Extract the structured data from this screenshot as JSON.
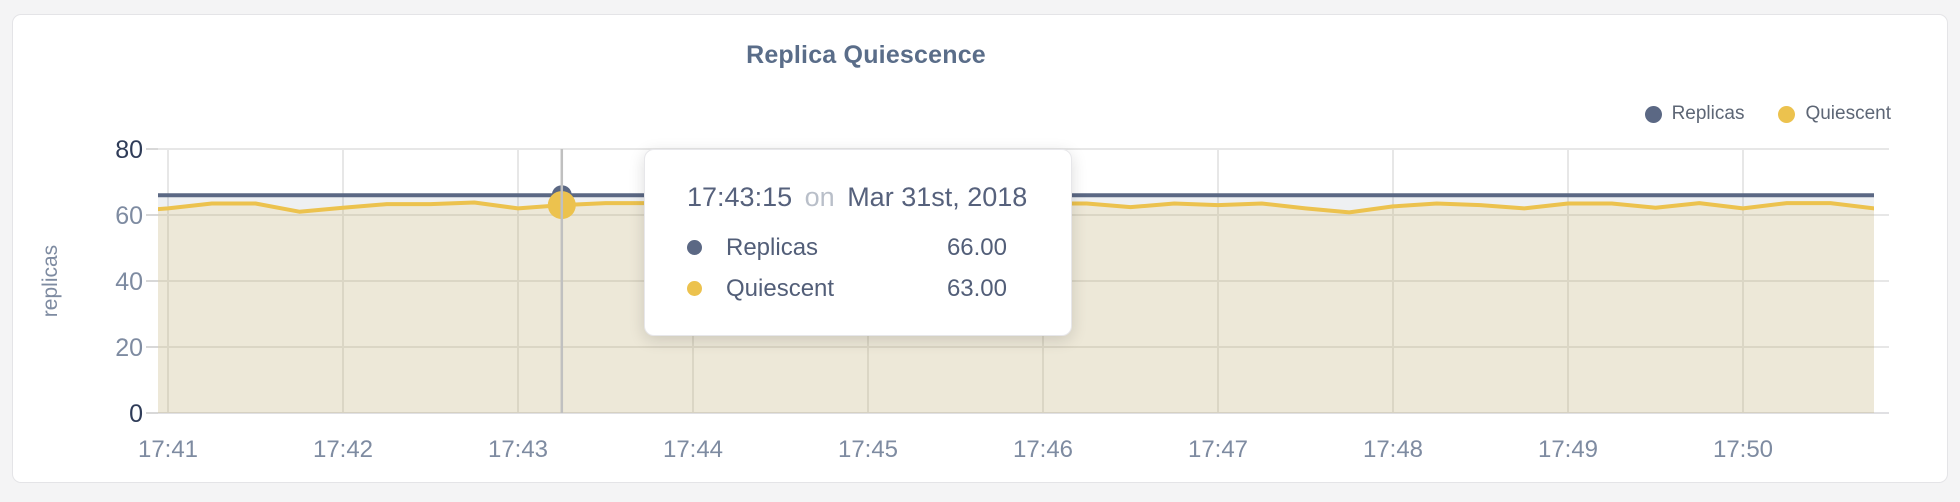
{
  "title": "Replica Quiescence",
  "legend": [
    {
      "label": "Replicas",
      "color": "#5b6884"
    },
    {
      "label": "Quiescent",
      "color": "#ecc24e"
    }
  ],
  "tooltip": {
    "time": "17:43:15",
    "preposition": "on",
    "date": "Mar 31st, 2018",
    "rows": [
      {
        "label": "Replicas",
        "value": "66.00",
        "color": "#5b6884"
      },
      {
        "label": "Quiescent",
        "value": "63.00",
        "color": "#ecc24e"
      }
    ]
  },
  "colors": {
    "page_background": "#f4f4f5",
    "card_background": "#ffffff",
    "card_border": "#e4e4e7",
    "grid_line": "#e7e7e7",
    "axis_line": "#e0e0e3",
    "tick_mark": "#d8d8d8",
    "crosshair": "#c0c0c0",
    "axis_label_light": "#7e8ba1",
    "axis_label_dark": "#2f3c58",
    "title_text": "#5a6d89"
  },
  "chart_data": {
    "type": "line",
    "title": "Replica Quiescence",
    "xlabel": "",
    "ylabel": "replicas",
    "ylim": [
      0,
      80
    ],
    "y_ticks": [
      0,
      20,
      40,
      60,
      80
    ],
    "x_tick_labels": [
      "17:41",
      "17:42",
      "17:43",
      "17:44",
      "17:45",
      "17:46",
      "17:47",
      "17:48",
      "17:49",
      "17:50"
    ],
    "grid": true,
    "legend_position": "top-right",
    "times": [
      "17:40:45",
      "17:41:00",
      "17:41:15",
      "17:41:30",
      "17:41:45",
      "17:42:00",
      "17:42:15",
      "17:42:30",
      "17:42:45",
      "17:43:00",
      "17:43:15",
      "17:43:30",
      "17:43:45",
      "17:44:00",
      "17:44:15",
      "17:44:30",
      "17:44:45",
      "17:45:00",
      "17:45:15",
      "17:45:30",
      "17:45:45",
      "17:46:00",
      "17:46:15",
      "17:46:30",
      "17:46:45",
      "17:47:00",
      "17:47:15",
      "17:47:30",
      "17:47:45",
      "17:48:00",
      "17:48:15",
      "17:48:30",
      "17:48:45",
      "17:49:00",
      "17:49:15",
      "17:49:30",
      "17:49:45",
      "17:50:00",
      "17:50:15",
      "17:50:30",
      "17:50:45"
    ],
    "series": [
      {
        "name": "Replicas",
        "color": "#5b6884",
        "fill": "rgba(91,104,132,0.10)",
        "values": [
          66,
          66,
          66,
          66,
          66,
          66,
          66,
          66,
          66,
          66,
          66,
          66,
          66,
          66,
          66,
          66,
          66,
          66,
          66,
          66,
          66,
          66,
          66,
          66,
          66,
          66,
          66,
          66,
          66,
          66,
          66,
          66,
          66,
          66,
          66,
          66,
          66,
          66,
          66,
          66,
          66
        ]
      },
      {
        "name": "Quiescent",
        "color": "#ecc24e",
        "fill": "rgba(238,194,79,0.16)",
        "values": [
          61.0,
          62.0,
          63.5,
          63.5,
          61.0,
          62.2,
          63.3,
          63.3,
          63.8,
          62.0,
          63.0,
          63.6,
          63.6,
          63.6,
          62.0,
          63.2,
          63.6,
          62.4,
          63.5,
          63.5,
          62.0,
          63.5,
          63.5,
          62.4,
          63.5,
          63.0,
          63.5,
          62.0,
          60.8,
          62.6,
          63.5,
          63.0,
          62.0,
          63.5,
          63.5,
          62.2,
          63.6,
          62.0,
          63.6,
          63.6,
          62.0
        ]
      }
    ],
    "highlight": {
      "time": "17:43:15",
      "values": {
        "Replicas": 66,
        "Quiescent": 63
      }
    }
  }
}
